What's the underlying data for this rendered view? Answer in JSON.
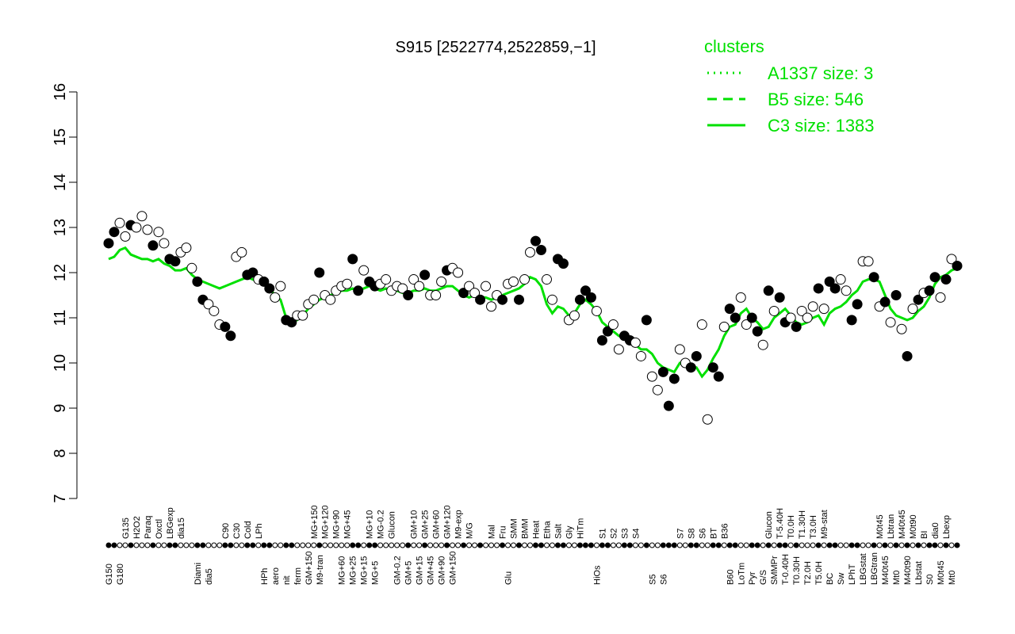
{
  "chart_data": {
    "type": "line",
    "title": "S915 [2522774,2522859,−1]",
    "legend_title": "clusters",
    "legend_position": "top-right",
    "ylim": [
      7,
      16
    ],
    "yticks": [
      7,
      8,
      9,
      10,
      11,
      12,
      13,
      14,
      15,
      16
    ],
    "categories": [
      "G150",
      null,
      "G180",
      "G135",
      null,
      "H2O2",
      null,
      "Paraq",
      null,
      "Oxctl",
      null,
      "LBGexp",
      null,
      "dia15",
      null,
      null,
      "Diami",
      null,
      "dia5",
      null,
      null,
      "C90",
      null,
      "C30",
      null,
      "Cold",
      null,
      "LPh",
      "HPh",
      null,
      "aero",
      null,
      "nit",
      null,
      "ferm",
      null,
      "GM+150",
      "MG+150",
      "M9-tran",
      "MG+120",
      null,
      "MG+90",
      "MG+60",
      "MG+45",
      "MG+25",
      null,
      "MG+15",
      "MG+10",
      "MG+5",
      "MG-0.2",
      null,
      "Glucon",
      "GM-0.2",
      null,
      "GM+5",
      "GM+10",
      "GM+15",
      "GM+25",
      "GM+45",
      "GM+60",
      "GM+90",
      "GM+120",
      "GM+150",
      "M9-exp",
      null,
      "M/G",
      null,
      null,
      null,
      "Mal",
      null,
      "Fru",
      "Glu",
      "SMM",
      null,
      "BMM",
      null,
      "Heat",
      null,
      "Etha",
      null,
      "Salt",
      null,
      "Gly",
      null,
      "HiTm",
      null,
      null,
      "HiOs",
      "S1",
      null,
      "S2",
      null,
      "S3",
      null,
      "S4",
      null,
      null,
      "S5",
      null,
      "S6",
      null,
      null,
      "S7",
      null,
      "S8",
      null,
      "S6",
      null,
      "BT",
      null,
      "B36",
      "B60",
      null,
      "LoTm",
      null,
      "Pyr",
      null,
      "G/S",
      "Glucon",
      "SMMPr",
      "T-5.40H",
      "T-0.40H",
      "T0.0H",
      "T0.30H",
      "T1.30H",
      "T2.0H",
      "T3.0H",
      "T5.0H",
      "M9-stat",
      "BC",
      null,
      "Sw",
      null,
      "LPhT",
      null,
      "LBGstat",
      null,
      "LBGtran",
      "M0t45",
      "M40t45",
      "Lbtran",
      "Mt0",
      "M40t45",
      "M40t90",
      "M0t90",
      "Lbstat",
      "BI",
      "S0",
      "dia0",
      "M0t45",
      "Lbexp",
      "Mt0",
      null
    ],
    "values": [
      12.65,
      12.9,
      13.1,
      12.8,
      13.05,
      13.0,
      13.25,
      12.95,
      12.6,
      12.9,
      12.65,
      12.3,
      12.25,
      12.45,
      12.55,
      12.1,
      11.8,
      11.4,
      11.3,
      11.15,
      10.85,
      10.8,
      10.6,
      12.35,
      12.45,
      11.95,
      12.0,
      11.85,
      11.8,
      11.65,
      11.45,
      11.7,
      10.95,
      10.9,
      11.05,
      11.05,
      11.3,
      11.4,
      12.0,
      11.5,
      11.4,
      11.6,
      11.7,
      11.75,
      12.3,
      11.6,
      12.05,
      11.8,
      11.7,
      11.75,
      11.85,
      11.6,
      11.7,
      11.65,
      11.5,
      11.85,
      11.7,
      11.95,
      11.5,
      11.5,
      11.8,
      12.05,
      12.1,
      12.0,
      11.55,
      11.7,
      11.55,
      11.4,
      11.7,
      11.25,
      11.5,
      11.4,
      11.75,
      11.8,
      11.4,
      11.85,
      12.45,
      12.7,
      12.5,
      11.85,
      11.4,
      12.3,
      12.2,
      10.95,
      11.05,
      11.4,
      11.6,
      11.45,
      11.15,
      10.5,
      10.7,
      10.85,
      10.3,
      10.6,
      10.5,
      10.45,
      10.15,
      10.95,
      9.7,
      9.4,
      9.8,
      9.05,
      9.65,
      10.3,
      10.0,
      9.9,
      10.15,
      10.85,
      8.75,
      9.9,
      9.7,
      10.8,
      11.2,
      11.0,
      11.45,
      10.85,
      11.0,
      10.7,
      10.4,
      11.6,
      11.15,
      11.45,
      10.9,
      11.0,
      10.8,
      11.15,
      11.0,
      11.25,
      11.65,
      11.2,
      11.8,
      11.65,
      11.85,
      11.6,
      10.95,
      11.3,
      12.25,
      12.25,
      11.9,
      11.25,
      11.35,
      10.9,
      11.5,
      10.75,
      10.15,
      11.2,
      11.4,
      11.55,
      11.6,
      11.9,
      11.45,
      11.85,
      12.3,
      12.15
    ],
    "point_fills": [
      "black",
      "black",
      "white",
      "white",
      "black",
      "white",
      "white",
      "white",
      "black",
      "white",
      "white",
      "black",
      "black",
      "white",
      "white",
      "white",
      "black",
      "black",
      "white",
      "white",
      "white",
      "black",
      "black",
      "white",
      "white",
      "black",
      "black",
      "white",
      "black",
      "black",
      "white",
      "white",
      "black",
      "black",
      "white",
      "white",
      "white",
      "white",
      "black",
      "white",
      "white",
      "white",
      "white",
      "white",
      "black",
      "black",
      "white",
      "black",
      "black",
      "white",
      "white",
      "white",
      "white",
      "white",
      "black",
      "white",
      "white",
      "black",
      "white",
      "white",
      "white",
      "black",
      "white",
      "white",
      "black",
      "white",
      "white",
      "black",
      "white",
      "white",
      "white",
      "black",
      "white",
      "white",
      "black",
      "white",
      "white",
      "black",
      "black",
      "white",
      "white",
      "black",
      "black",
      "white",
      "white",
      "black",
      "black",
      "black",
      "white",
      "black",
      "black",
      "white",
      "white",
      "black",
      "black",
      "white",
      "white",
      "black",
      "white",
      "white",
      "black",
      "black",
      "black",
      "white",
      "white",
      "black",
      "black",
      "white",
      "white",
      "black",
      "black",
      "white",
      "black",
      "black",
      "white",
      "white",
      "black",
      "black",
      "white",
      "black",
      "white",
      "black",
      "black",
      "white",
      "black",
      "white",
      "white",
      "white",
      "black",
      "white",
      "black",
      "black",
      "white",
      "white",
      "black",
      "black",
      "white",
      "white",
      "black",
      "white",
      "black",
      "white",
      "black",
      "white",
      "black",
      "white",
      "black",
      "white",
      "black",
      "black",
      "white",
      "black",
      "white",
      "black"
    ],
    "series": [
      {
        "name": "A1337 size: 3",
        "color": "#00e000",
        "linestyle": "dotted"
      },
      {
        "name": "B5 size: 546",
        "color": "#00e000",
        "linestyle": "dashed"
      },
      {
        "name": "C3 size: 1383",
        "color": "#00e000",
        "linestyle": "solid",
        "values": [
          12.3,
          12.35,
          12.5,
          12.55,
          12.4,
          12.35,
          12.3,
          12.3,
          12.25,
          12.3,
          12.2,
          12.15,
          12.05,
          12.05,
          12.1,
          11.95,
          11.85,
          11.8,
          11.75,
          11.7,
          11.65,
          11.7,
          11.75,
          11.8,
          11.85,
          11.9,
          11.85,
          11.8,
          11.75,
          11.65,
          11.5,
          11.4,
          11.0,
          10.9,
          10.95,
          11.05,
          11.2,
          11.3,
          11.4,
          11.45,
          11.5,
          11.55,
          11.6,
          11.6,
          11.65,
          11.6,
          11.65,
          11.7,
          11.65,
          11.6,
          11.65,
          11.6,
          11.6,
          11.55,
          11.55,
          11.6,
          11.6,
          11.65,
          11.6,
          11.6,
          11.65,
          11.7,
          11.7,
          11.6,
          11.5,
          11.45,
          11.5,
          11.45,
          11.45,
          11.4,
          11.45,
          11.5,
          11.55,
          11.6,
          11.65,
          11.75,
          11.9,
          11.85,
          11.7,
          11.3,
          11.1,
          11.25,
          11.2,
          11.05,
          11.1,
          11.3,
          11.4,
          11.3,
          11.15,
          10.9,
          10.8,
          10.7,
          10.6,
          10.55,
          10.5,
          10.4,
          10.3,
          10.3,
          10.2,
          10.0,
          9.9,
          9.85,
          9.8,
          10.0,
          9.95,
          9.9,
          9.9,
          9.7,
          9.85,
          10.1,
          10.3,
          10.6,
          10.8,
          10.85,
          11.1,
          11.2,
          11.0,
          10.9,
          10.75,
          10.8,
          11.0,
          11.1,
          11.2,
          11.05,
          10.9,
          10.85,
          10.9,
          11.0,
          11.05,
          10.85,
          11.1,
          11.2,
          11.25,
          11.35,
          11.5,
          11.6,
          11.8,
          11.85,
          11.85,
          11.8,
          11.5,
          11.2,
          11.05,
          11.0,
          10.95,
          11.0,
          11.15,
          11.25,
          11.45,
          11.75,
          11.9,
          11.95,
          12.05,
          12.1
        ]
      }
    ]
  }
}
